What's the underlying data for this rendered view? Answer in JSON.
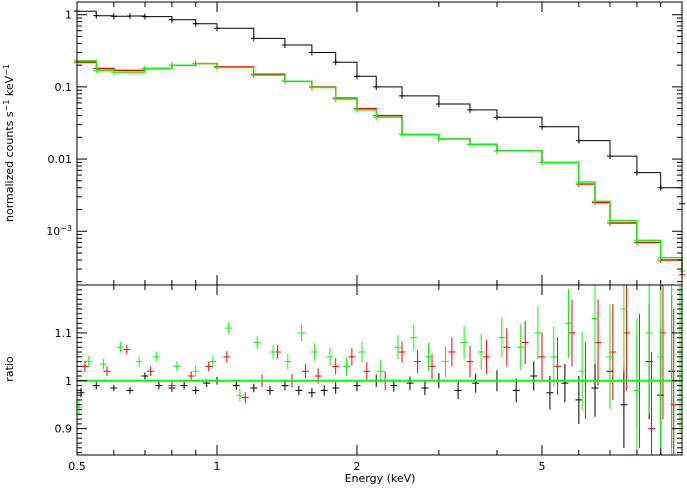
{
  "chart_data": [
    {
      "type": "line",
      "panel": "top",
      "xscale": "log",
      "yscale": "log",
      "xlim": [
        0.5,
        10
      ],
      "ylim": [
        0.00018,
        1.5
      ],
      "ylabel_main": "normalized counts s",
      "ylabel_sup1": "−1",
      "ylabel_mid": " keV",
      "ylabel_sup2": "−1",
      "yticks": [
        {
          "value": 1,
          "label": "1",
          "is_pow": false
        },
        {
          "value": 0.1,
          "label": "0.1",
          "is_pow": false
        },
        {
          "value": 0.01,
          "label": "0.01",
          "is_pow": false
        },
        {
          "value": 0.001,
          "label": "10",
          "exp": "−3",
          "is_pow": true
        }
      ],
      "series": [
        {
          "color": "#000000",
          "x": [
            0.5,
            0.55,
            0.6,
            0.65,
            0.7,
            0.8,
            0.9,
            1.0,
            1.2,
            1.4,
            1.6,
            1.8,
            2.0,
            2.2,
            2.5,
            3.0,
            3.5,
            4.0,
            5.0,
            6.0,
            7.0,
            8.0,
            9.0,
            10.0
          ],
          "y": [
            1.12,
            0.97,
            0.95,
            0.96,
            0.94,
            0.85,
            0.75,
            0.65,
            0.47,
            0.38,
            0.3,
            0.22,
            0.14,
            0.1,
            0.075,
            0.058,
            0.048,
            0.038,
            0.028,
            0.018,
            0.011,
            0.0065,
            0.004,
            0.0024
          ]
        },
        {
          "color": "#ff0000",
          "x": [
            0.5,
            0.55,
            0.6,
            0.7,
            0.8,
            0.9,
            1.0,
            1.2,
            1.4,
            1.6,
            1.8,
            2.0,
            2.2,
            2.5,
            3.0,
            3.5,
            4.0,
            5.0,
            6.0,
            6.5,
            7.0,
            8.0,
            9.0,
            10.0
          ],
          "y": [
            0.22,
            0.18,
            0.17,
            0.18,
            0.2,
            0.21,
            0.19,
            0.15,
            0.12,
            0.1,
            0.07,
            0.05,
            0.04,
            0.022,
            0.019,
            0.016,
            0.013,
            0.009,
            0.0045,
            0.0025,
            0.0013,
            0.0007,
            0.0004,
            0.00025
          ]
        },
        {
          "color": "#00ff00",
          "x": [
            0.5,
            0.55,
            0.6,
            0.7,
            0.8,
            0.9,
            1.0,
            1.2,
            1.4,
            1.6,
            1.8,
            2.0,
            2.2,
            2.5,
            3.0,
            3.5,
            4.0,
            5.0,
            6.0,
            6.5,
            7.0,
            8.0,
            9.0,
            10.0
          ],
          "y": [
            0.23,
            0.17,
            0.16,
            0.18,
            0.2,
            0.21,
            0.185,
            0.145,
            0.12,
            0.098,
            0.068,
            0.048,
            0.038,
            0.022,
            0.019,
            0.016,
            0.013,
            0.009,
            0.0048,
            0.0026,
            0.0014,
            0.00075,
            0.00043,
            0.00028
          ]
        }
      ]
    },
    {
      "type": "scatter",
      "panel": "bottom",
      "xscale": "log",
      "xlim": [
        0.5,
        10
      ],
      "ylim": [
        0.845,
        1.2
      ],
      "xlabel": "Energy (keV)",
      "ylabel": "ratio",
      "xticks": [
        {
          "value": 0.5,
          "label": "0.5"
        },
        {
          "value": 1,
          "label": "1"
        },
        {
          "value": 2,
          "label": "2"
        },
        {
          "value": 5,
          "label": "5"
        }
      ],
      "yticks": [
        {
          "value": 0.9,
          "label": "0.9"
        },
        {
          "value": 1.0,
          "label": "1"
        },
        {
          "value": 1.1,
          "label": "1.1"
        }
      ],
      "reference_line": {
        "value": 1.0,
        "color": "#00ff00"
      },
      "series": [
        {
          "color": "#000000",
          "x": [
            0.51,
            0.55,
            0.6,
            0.65,
            0.7,
            0.75,
            0.8,
            0.85,
            0.9,
            0.95,
            1.0,
            1.1,
            1.2,
            1.3,
            1.4,
            1.5,
            1.6,
            1.7,
            1.8,
            2.0,
            2.2,
            2.4,
            2.6,
            2.8,
            3.0,
            3.3,
            3.6,
            4.0,
            4.4,
            4.8,
            5.2,
            5.6,
            6.0,
            6.5,
            7.0,
            7.5,
            8.0,
            8.5,
            9.0,
            9.5
          ],
          "y": [
            0.975,
            0.99,
            0.985,
            0.98,
            1.01,
            0.99,
            0.985,
            0.99,
            0.98,
            0.995,
            1.0,
            0.99,
            0.985,
            0.98,
            0.99,
            0.98,
            0.975,
            0.98,
            0.985,
            0.99,
            1.0,
            0.99,
            0.995,
            0.985,
            1.0,
            0.98,
            0.995,
            1.0,
            0.98,
            1.01,
            0.975,
            0.995,
            0.96,
            0.985,
            1.02,
            0.95,
            1.0,
            1.04,
            0.97,
            1.02
          ],
          "err": [
            0.01,
            0.008,
            0.007,
            0.007,
            0.007,
            0.008,
            0.008,
            0.008,
            0.008,
            0.008,
            0.008,
            0.009,
            0.009,
            0.01,
            0.01,
            0.01,
            0.01,
            0.011,
            0.012,
            0.012,
            0.013,
            0.013,
            0.014,
            0.015,
            0.016,
            0.018,
            0.02,
            0.022,
            0.025,
            0.03,
            0.035,
            0.04,
            0.05,
            0.06,
            0.07,
            0.09,
            0.1,
            0.12,
            0.14,
            0.16
          ]
        },
        {
          "color": "#ff0000",
          "x": [
            0.52,
            0.58,
            0.64,
            0.72,
            0.8,
            0.88,
            0.96,
            1.05,
            1.15,
            1.25,
            1.35,
            1.45,
            1.55,
            1.65,
            1.8,
            1.95,
            2.1,
            2.3,
            2.5,
            2.7,
            2.9,
            3.2,
            3.5,
            3.8,
            4.2,
            4.6,
            5.0,
            5.4,
            5.8,
            6.2,
            6.6,
            7.1,
            7.6,
            8.1,
            8.6,
            9.1,
            9.6
          ],
          "y": [
            1.03,
            1.02,
            1.065,
            1.02,
            0.99,
            1.01,
            1.03,
            1.05,
            0.965,
            1.0,
            1.06,
            1.0,
            1.02,
            1.01,
            1.03,
            1.05,
            1.02,
            1.0,
            1.06,
            1.04,
            1.03,
            1.06,
            1.04,
            1.05,
            1.07,
            1.08,
            1.05,
            1.03,
            1.1,
            1.0,
            1.08,
            1.06,
            1.1,
            1.0,
            0.9,
            1.1,
            0.95
          ],
          "err": [
            0.012,
            0.01,
            0.01,
            0.01,
            0.01,
            0.01,
            0.01,
            0.012,
            0.012,
            0.013,
            0.014,
            0.014,
            0.015,
            0.016,
            0.017,
            0.018,
            0.019,
            0.02,
            0.022,
            0.024,
            0.026,
            0.03,
            0.033,
            0.036,
            0.04,
            0.045,
            0.05,
            0.06,
            0.07,
            0.08,
            0.09,
            0.1,
            0.12,
            0.14,
            0.16,
            0.18,
            0.2
          ]
        },
        {
          "color": "#00ff00",
          "x": [
            0.505,
            0.53,
            0.57,
            0.62,
            0.68,
            0.74,
            0.82,
            0.9,
            0.98,
            1.06,
            1.12,
            1.22,
            1.32,
            1.42,
            1.52,
            1.62,
            1.75,
            1.9,
            2.05,
            2.25,
            2.45,
            2.65,
            2.85,
            3.1,
            3.4,
            3.7,
            4.1,
            4.5,
            4.9,
            5.3,
            5.7,
            6.1,
            6.5,
            7.0,
            7.5,
            8.0,
            8.5,
            9.0,
            9.5,
            9.9
          ],
          "y": [
            0.945,
            1.04,
            1.035,
            1.07,
            1.04,
            1.05,
            1.03,
            1.02,
            1.04,
            1.11,
            0.97,
            1.08,
            1.06,
            1.04,
            1.1,
            1.06,
            1.05,
            1.03,
            1.06,
            1.02,
            1.07,
            1.09,
            1.05,
            1.04,
            1.08,
            1.06,
            1.09,
            1.07,
            1.1,
            1.05,
            1.12,
            1.02,
            1.13,
            1.05,
            1.15,
            0.98,
            1.1,
            1.05,
            1.0,
            1.12
          ],
          "err": [
            0.015,
            0.012,
            0.011,
            0.011,
            0.011,
            0.011,
            0.011,
            0.011,
            0.012,
            0.013,
            0.013,
            0.014,
            0.015,
            0.016,
            0.017,
            0.018,
            0.019,
            0.02,
            0.021,
            0.023,
            0.025,
            0.027,
            0.029,
            0.032,
            0.035,
            0.038,
            0.042,
            0.048,
            0.055,
            0.063,
            0.072,
            0.082,
            0.095,
            0.11,
            0.13,
            0.15,
            0.17,
            0.19,
            0.21,
            0.23
          ]
        }
      ]
    }
  ]
}
